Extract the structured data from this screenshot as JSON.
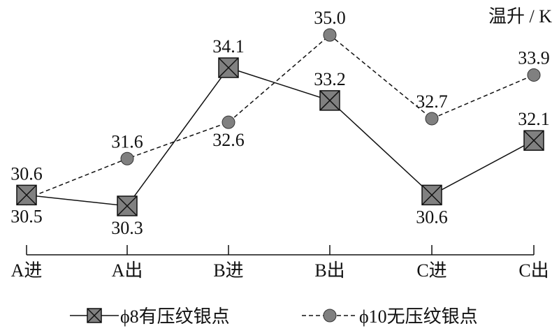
{
  "chart_data": {
    "type": "line",
    "title": "",
    "xlabel": "",
    "ylabel": "温升 / K",
    "categories": [
      "A进",
      "A出",
      "B进",
      "B出",
      "C进",
      "C出"
    ],
    "grid": false,
    "legend_position": "bottom",
    "series": [
      {
        "name": "ϕ8有压纹银点",
        "line_style": "solid",
        "marker": "square-x",
        "color": "#808080",
        "values": [
          30.6,
          30.3,
          34.1,
          33.2,
          30.6,
          32.1
        ],
        "labels": [
          "30.6",
          "30.3",
          "34.1",
          "33.2",
          "30.6",
          "32.1"
        ],
        "label_positions": [
          "above",
          "below",
          "above",
          "above",
          "below",
          "above"
        ]
      },
      {
        "name": "ϕ10无压纹银点",
        "line_style": "dashed",
        "marker": "circle",
        "color": "#808080",
        "values": [
          30.5,
          31.6,
          32.6,
          35.0,
          32.7,
          33.9
        ],
        "labels": [
          "30.5",
          "31.6",
          "32.6",
          "35.0",
          "32.7",
          "33.9"
        ],
        "label_positions": [
          "below",
          "above",
          "below",
          "above",
          "above",
          "above"
        ]
      }
    ]
  }
}
